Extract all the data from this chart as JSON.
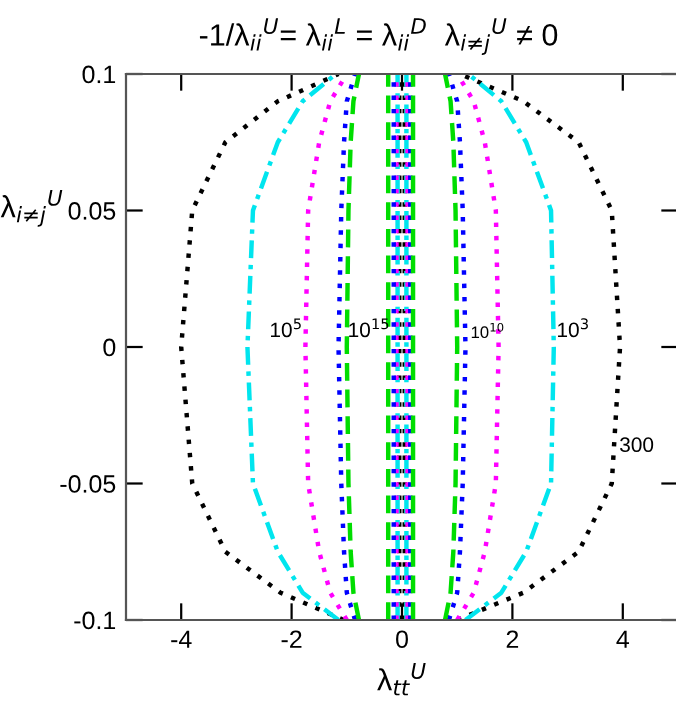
{
  "chart_data": {
    "type": "line",
    "title": "-1/λ$_{ii}$$^{U}$= λ$_{ii}$$^{L}$ = λ$_{ii}$$^{D}$  λ$_{i≠j}$$^{U}$ ≠ 0",
    "xlabel": "λ$_{tt}$$^{U}$",
    "ylabel": "λ$_{i≠j}$$^{U}$",
    "xlim": [
      -5,
      5
    ],
    "ylim": [
      -0.1,
      0.1
    ],
    "xticks": [
      -4,
      -2,
      0,
      2,
      4
    ],
    "yticks": [
      -0.1,
      -0.05,
      0,
      0.05,
      0.1
    ],
    "grid": false,
    "legend": false,
    "marker": "none",
    "series": [
      {
        "color": "#000000",
        "line_style": "dotted",
        "x": [
          -1.05,
          -2.2,
          -3.2,
          -3.8,
          -4.0,
          -3.8,
          -3.2,
          -2.25,
          -1.15,
          null,
          1.0,
          2.2,
          3.2,
          3.8,
          3.95,
          3.8,
          3.2,
          2.2,
          1.05,
          null,
          -0.05,
          -0.05,
          null,
          0.05,
          0.05
        ],
        "values": [
          -0.1,
          -0.09,
          -0.075,
          -0.05,
          0,
          0.05,
          0.075,
          0.09,
          0.1,
          null,
          -0.1,
          -0.09,
          -0.075,
          -0.05,
          0,
          0.05,
          0.075,
          0.09,
          0.1,
          null,
          -0.1,
          0.1,
          null,
          -0.1,
          0.1
        ]
      },
      {
        "color": "#00e5ee",
        "line_style": "dashdot",
        "x": [
          -1.15,
          -1.8,
          -2.25,
          -2.7,
          -2.8,
          -2.7,
          -2.25,
          -1.8,
          -1.2,
          null,
          1.15,
          1.8,
          2.25,
          2.7,
          2.75,
          2.7,
          2.25,
          1.8,
          1.2,
          null,
          -0.08,
          -0.08,
          null,
          0.08,
          0.08
        ],
        "values": [
          -0.1,
          -0.09,
          -0.075,
          -0.05,
          0,
          0.05,
          0.075,
          0.09,
          0.1,
          null,
          -0.1,
          -0.09,
          -0.075,
          -0.05,
          0,
          0.05,
          0.075,
          0.09,
          0.1,
          null,
          -0.1,
          0.1,
          null,
          -0.1,
          0.1
        ]
      },
      {
        "color": "#ff00ff",
        "line_style": "dotted",
        "x": [
          -1.0,
          -1.3,
          -1.5,
          -1.7,
          -1.75,
          -1.7,
          -1.5,
          -1.3,
          -1.0,
          null,
          1.0,
          1.3,
          1.5,
          1.7,
          1.75,
          1.7,
          1.5,
          1.3,
          1.0,
          null,
          -0.1,
          -0.1,
          null,
          0.1,
          0.1
        ],
        "values": [
          -0.1,
          -0.09,
          -0.075,
          -0.05,
          0,
          0.05,
          0.075,
          0.09,
          0.1,
          null,
          -0.1,
          -0.09,
          -0.075,
          -0.05,
          0,
          0.05,
          0.075,
          0.09,
          0.1,
          null,
          -0.1,
          0.1,
          null,
          -0.1,
          0.1
        ]
      },
      {
        "color": "#0000ff",
        "line_style": "dotted",
        "x": [
          -0.85,
          -1.0,
          -1.05,
          -1.1,
          -1.15,
          -1.1,
          -1.05,
          -1.0,
          -0.85,
          null,
          0.85,
          1.0,
          1.05,
          1.1,
          1.15,
          1.1,
          1.05,
          1.0,
          0.85,
          null,
          -0.15,
          -0.15,
          null,
          0.15,
          0.15
        ],
        "values": [
          -0.1,
          -0.09,
          -0.075,
          -0.05,
          0,
          0.05,
          0.075,
          0.09,
          0.1,
          null,
          -0.1,
          -0.09,
          -0.075,
          -0.05,
          0,
          0.05,
          0.075,
          0.09,
          0.1,
          null,
          -0.1,
          0.1,
          null,
          -0.1,
          0.1
        ]
      },
      {
        "color": "#00dd00",
        "line_style": "dashed",
        "x": [
          -0.78,
          -0.88,
          -0.93,
          -0.97,
          -1.0,
          -0.97,
          -0.93,
          -0.88,
          -0.78,
          null,
          0.78,
          0.88,
          0.93,
          0.97,
          1.0,
          0.97,
          0.93,
          0.88,
          0.78,
          null,
          -0.25,
          -0.25,
          null,
          0.2,
          0.2
        ],
        "values": [
          -0.1,
          -0.09,
          -0.075,
          -0.05,
          0,
          0.05,
          0.075,
          0.09,
          0.1,
          null,
          -0.1,
          -0.09,
          -0.075,
          -0.05,
          0,
          0.05,
          0.075,
          0.09,
          0.1,
          null,
          -0.1,
          0.1,
          null,
          -0.1,
          0.1
        ]
      }
    ],
    "annotations": [
      "10$^{5}$",
      "10$^{15}$",
      "10$^{10}$",
      "10$^{3}$",
      "300"
    ]
  }
}
